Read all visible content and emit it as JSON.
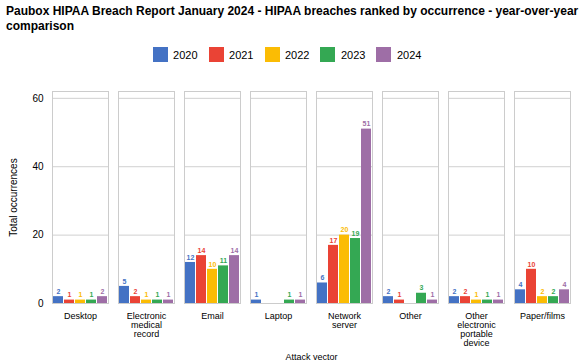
{
  "chart_data": {
    "type": "bar",
    "title": "Paubox HIPAA Breach Report January 2024 - HIPAA breaches ranked by occurrence - year-over-year comparison",
    "xlabel": "Attack vector",
    "ylabel": "Total occurrences",
    "categories": [
      "Desktop",
      "Electronic medical record",
      "Email",
      "Laptop",
      "Network server",
      "Other",
      "Other electronic portable device",
      "Paper/films"
    ],
    "series": [
      {
        "name": "2020",
        "color": "#4472c4",
        "values": [
          2,
          5,
          12,
          1,
          6,
          2,
          2,
          4
        ]
      },
      {
        "name": "2021",
        "color": "#ea4335",
        "values": [
          1,
          2,
          14,
          0,
          17,
          1,
          2,
          10
        ]
      },
      {
        "name": "2022",
        "color": "#fbbc04",
        "values": [
          1,
          1,
          10,
          0,
          20,
          0,
          1,
          2
        ]
      },
      {
        "name": "2023",
        "color": "#34a853",
        "values": [
          1,
          1,
          11,
          1,
          19,
          3,
          1,
          2
        ]
      },
      {
        "name": "2024",
        "color": "#9e6ea6",
        "values": [
          2,
          1,
          14,
          1,
          51,
          1,
          1,
          4
        ]
      }
    ],
    "ylim": [
      0,
      62
    ],
    "yticks": [
      0,
      20,
      40,
      60
    ],
    "grid": true,
    "legend": "top",
    "data_labels": true
  }
}
